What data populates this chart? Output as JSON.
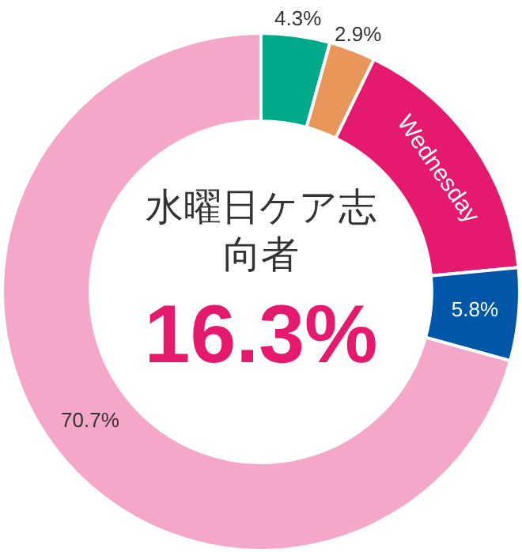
{
  "chart_data": {
    "type": "donut",
    "categories": [
      null,
      null,
      "Wednesday",
      null,
      null
    ],
    "values": [
      4.3,
      2.9,
      16.3,
      5.8,
      70.7
    ],
    "colors": [
      "#00a98a",
      "#e8965a",
      "#e5196e",
      "#0057a8",
      "#f4a7c8"
    ],
    "value_labels": [
      "4.3%",
      "2.9%",
      "16.3%",
      "5.8%",
      "70.7%"
    ],
    "annotations": [
      "水曜日ケア志向者"
    ],
    "legend": false
  }
}
